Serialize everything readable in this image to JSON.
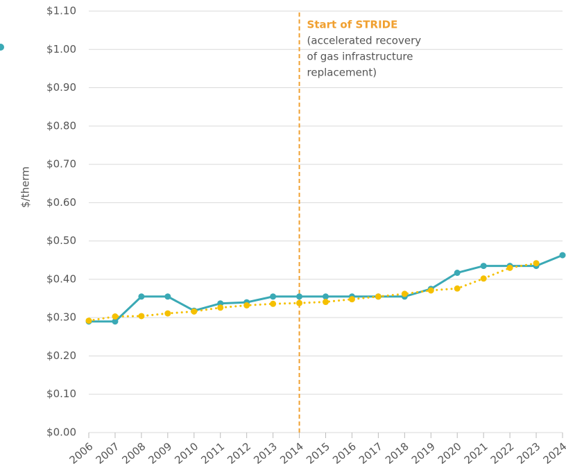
{
  "chart_data": {
    "type": "line",
    "y_label": "$/therm",
    "categories": [
      "2006",
      "2007",
      "2008",
      "2009",
      "2010",
      "2011",
      "2012",
      "2013",
      "2014",
      "2015",
      "2016",
      "2017",
      "2018",
      "2019",
      "2020",
      "2021",
      "2022",
      "2023",
      "2024"
    ],
    "series": [
      {
        "color": "#3aa9b5",
        "style": "solid",
        "values": [
          0.29,
          0.29,
          0.355,
          0.355,
          0.318,
          0.337,
          0.34,
          0.355,
          0.355,
          0.355,
          0.355,
          0.355,
          0.355,
          0.375,
          0.417,
          0.435,
          0.435,
          0.435,
          0.463
        ]
      },
      {
        "color": "#f5c000",
        "style": "dotted",
        "values": [
          0.292,
          0.303,
          0.304,
          0.311,
          0.316,
          0.326,
          0.332,
          0.336,
          0.338,
          0.341,
          0.348,
          0.355,
          0.362,
          0.371,
          0.376,
          0.402,
          0.43,
          0.442,
          null
        ]
      }
    ],
    "ylim": [
      0,
      1.1
    ],
    "yticks": [
      {
        "value": 0,
        "label": "$0.00"
      },
      {
        "value": 0.1,
        "label": "$0.10"
      },
      {
        "value": 0.2,
        "label": "$0.20"
      },
      {
        "value": 0.3,
        "label": "$0.30"
      },
      {
        "value": 0.4,
        "label": "$0.40"
      },
      {
        "value": 0.5,
        "label": "$0.50"
      },
      {
        "value": 0.6,
        "label": "$0.60"
      },
      {
        "value": 0.7,
        "label": "$0.70"
      },
      {
        "value": 0.8,
        "label": "$0.80"
      },
      {
        "value": 0.9,
        "label": "$0.90"
      },
      {
        "value": 1.0,
        "label": "$1.00"
      },
      {
        "value": 1.1,
        "label": "$1.10"
      }
    ],
    "grid": true,
    "annotation": {
      "at": "2014",
      "color": "#f0a030",
      "title": "Start of STRIDE",
      "lines": [
        "(accelerated recovery",
        "of gas infrastructure",
        "replacement)"
      ]
    }
  }
}
